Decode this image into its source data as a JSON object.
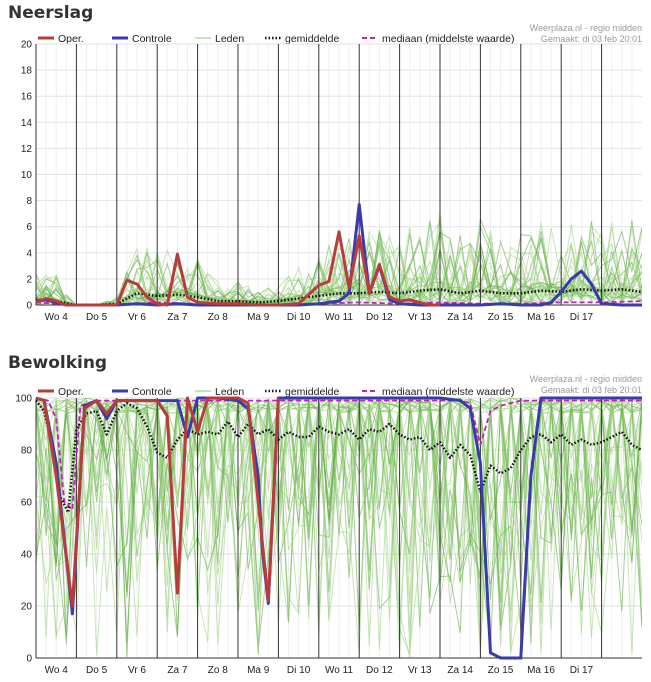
{
  "chart_data": [
    {
      "type": "line",
      "title": "Neerslag",
      "credit_line1": "Weerplaza.nl - regio midden",
      "credit_line2": "Gemaakt: di 03 feb 20:01",
      "ylim": [
        0,
        20
      ],
      "yticks": [
        0,
        2,
        4,
        6,
        8,
        10,
        12,
        14,
        16,
        18,
        20
      ],
      "xlim": [
        0,
        15
      ],
      "day_boundaries": [
        1,
        2,
        3,
        4,
        5,
        6,
        7,
        8,
        9,
        10,
        11,
        12,
        13,
        14
      ],
      "xlabels": [
        {
          "x": 0.5,
          "label": "Wo 4"
        },
        {
          "x": 1.5,
          "label": "Do 5"
        },
        {
          "x": 2.5,
          "label": "Vr 6"
        },
        {
          "x": 3.5,
          "label": "Za 7"
        },
        {
          "x": 4.5,
          "label": "Zo 8"
        },
        {
          "x": 5.5,
          "label": "Ma 9"
        },
        {
          "x": 6.5,
          "label": "Di 10"
        },
        {
          "x": 7.5,
          "label": "Wo 11"
        },
        {
          "x": 8.5,
          "label": "Do 12"
        },
        {
          "x": 9.5,
          "label": "Vr 13"
        },
        {
          "x": 10.5,
          "label": "Za 14"
        },
        {
          "x": 11.5,
          "label": "Zo 15"
        },
        {
          "x": 12.5,
          "label": "Ma 16"
        },
        {
          "x": 13.5,
          "label": "Di 17"
        }
      ],
      "grid": true,
      "legend": [
        {
          "label": "Oper.",
          "color": "#b83c3c",
          "style": "solid-thick"
        },
        {
          "label": "Controle",
          "color": "#3a3aaa",
          "style": "solid-thick"
        },
        {
          "label": "Leden",
          "color": "#8cc86c",
          "style": "thin"
        },
        {
          "label": "gemiddelde",
          "color": "#111111",
          "style": "dotted"
        },
        {
          "label": "mediaan (middelste waarde)",
          "color": "#c020c0",
          "style": "dashed"
        }
      ],
      "series": [
        {
          "name": "Oper.",
          "color": "#b83c3c",
          "x": [
            0,
            0.25,
            0.5,
            0.75,
            1,
            1.5,
            2,
            2.25,
            2.5,
            2.75,
            3,
            3.25,
            3.5,
            3.75,
            4,
            4.5,
            5,
            5.5,
            6,
            6.5,
            7,
            7.25,
            7.5,
            7.75,
            8,
            8.25,
            8.5,
            8.75,
            9,
            9.25,
            9.5,
            9.75,
            10
          ],
          "y": [
            0.2,
            0.5,
            0.3,
            0.0,
            0.0,
            0.0,
            0.0,
            1.9,
            1.6,
            0.6,
            0.1,
            0.0,
            3.9,
            0.6,
            0.2,
            0.1,
            0.1,
            0.0,
            0.0,
            0.1,
            1.5,
            1.8,
            5.6,
            1.3,
            5.3,
            0.9,
            3.1,
            0.6,
            0.3,
            0.4,
            0.2,
            0.0,
            0.0
          ]
        },
        {
          "name": "Controle",
          "color": "#3a3aaa",
          "x": [
            0,
            0.25,
            0.5,
            0.75,
            1,
            1.5,
            2,
            2.5,
            3,
            3.5,
            4,
            4.5,
            5,
            5.5,
            6,
            6.5,
            7,
            7.25,
            7.5,
            7.75,
            8,
            8.25,
            8.5,
            8.75,
            9,
            9.5,
            10,
            10.5,
            11,
            11.5,
            12,
            12.5,
            12.75,
            13,
            13.25,
            13.5,
            13.75,
            14,
            14.5,
            15
          ],
          "y": [
            0.3,
            0.4,
            0.2,
            0.0,
            0.0,
            0.0,
            0.0,
            0.1,
            0.0,
            0.1,
            0.0,
            0.0,
            0.0,
            0.0,
            0.0,
            0.0,
            0.1,
            0.2,
            0.3,
            0.9,
            7.7,
            0.9,
            3.0,
            0.4,
            0.1,
            0.0,
            0.0,
            0.0,
            0.0,
            0.1,
            0.0,
            0.0,
            0.2,
            1.0,
            2.0,
            2.6,
            1.6,
            0.1,
            0.0,
            0.0
          ]
        },
        {
          "name": "gemiddelde",
          "color": "#111111",
          "x": [
            0,
            0.5,
            1,
            1.5,
            2,
            2.5,
            3,
            3.5,
            4,
            4.5,
            5,
            5.5,
            6,
            6.5,
            7,
            7.5,
            8,
            8.5,
            9,
            9.5,
            10,
            10.5,
            11,
            11.5,
            12,
            12.5,
            13,
            13.5,
            14,
            14.5,
            15
          ],
          "y": [
            0.4,
            0.3,
            0.0,
            0.0,
            0.1,
            0.9,
            0.7,
            0.8,
            0.6,
            0.3,
            0.3,
            0.2,
            0.3,
            0.5,
            0.7,
            0.9,
            0.9,
            1.0,
            0.9,
            1.1,
            1.2,
            0.9,
            1.1,
            0.9,
            0.9,
            1.1,
            1.0,
            1.2,
            1.1,
            1.2,
            1.0
          ]
        },
        {
          "name": "mediaan (middelste waarde)",
          "color": "#c020c0",
          "x": [
            0,
            0.5,
            1,
            2,
            3,
            4,
            5,
            6,
            7,
            8,
            9,
            10,
            11,
            12,
            13,
            14,
            15
          ],
          "y": [
            0.2,
            0.1,
            0.0,
            0.0,
            0.2,
            0.1,
            0.0,
            0.0,
            0.1,
            0.2,
            0.1,
            0.2,
            0.1,
            0.1,
            0.2,
            0.2,
            0.3
          ]
        }
      ]
    },
    {
      "type": "line",
      "title": "Bewolking",
      "credit_line1": "Weerplaza.nl - regio midden",
      "credit_line2": "Gemaakt: di 03 feb 20:01",
      "ylim": [
        0,
        100
      ],
      "yticks": [
        0,
        20,
        40,
        60,
        80,
        100
      ],
      "xlim": [
        0,
        15
      ],
      "day_boundaries": [
        1,
        2,
        3,
        4,
        5,
        6,
        7,
        8,
        9,
        10,
        11,
        12,
        13,
        14
      ],
      "xlabels": [
        {
          "x": 0.5,
          "label": "Wo 4"
        },
        {
          "x": 1.5,
          "label": "Do 5"
        },
        {
          "x": 2.5,
          "label": "Vr 6"
        },
        {
          "x": 3.5,
          "label": "Za 7"
        },
        {
          "x": 4.5,
          "label": "Zo 8"
        },
        {
          "x": 5.5,
          "label": "Ma 9"
        },
        {
          "x": 6.5,
          "label": "Di 10"
        },
        {
          "x": 7.5,
          "label": "Wo 11"
        },
        {
          "x": 8.5,
          "label": "Do 12"
        },
        {
          "x": 9.5,
          "label": "Vr 13"
        },
        {
          "x": 10.5,
          "label": "Za 14"
        },
        {
          "x": 11.5,
          "label": "Zo 15"
        },
        {
          "x": 12.5,
          "label": "Ma 16"
        },
        {
          "x": 13.5,
          "label": "Di 17"
        }
      ],
      "grid": true,
      "legend": [
        {
          "label": "Oper.",
          "color": "#b83c3c",
          "style": "solid-thick"
        },
        {
          "label": "Controle",
          "color": "#3a3aaa",
          "style": "solid-thick"
        },
        {
          "label": "Leden",
          "color": "#8cc86c",
          "style": "thin"
        },
        {
          "label": "gemiddelde",
          "color": "#111111",
          "style": "dotted"
        },
        {
          "label": "mediaan (middelste waarde)",
          "color": "#c020c0",
          "style": "dashed"
        }
      ],
      "series": [
        {
          "name": "Oper.",
          "color": "#b83c3c",
          "x": [
            0,
            0.2,
            0.5,
            0.9,
            1.2,
            1.5,
            1.75,
            2,
            2.5,
            3,
            3.25,
            3.5,
            3.75,
            4,
            4.25,
            4.5,
            5,
            5.25,
            5.5,
            5.75,
            6
          ],
          "y": [
            100,
            99,
            70,
            20,
            96,
            99,
            94,
            99,
            99,
            99,
            93,
            25,
            100,
            87,
            100,
            100,
            100,
            98,
            60,
            22,
            100
          ]
        },
        {
          "name": "Controle",
          "color": "#3a3aaa",
          "x": [
            0,
            0.2,
            0.5,
            0.9,
            1.2,
            1.5,
            1.75,
            2,
            2.5,
            3,
            3.5,
            3.75,
            4,
            4.25,
            4.5,
            5,
            5.25,
            5.5,
            5.6,
            5.75,
            6,
            7,
            8,
            9,
            10,
            10.5,
            10.75,
            11,
            11.25,
            11.5,
            11.75,
            12,
            12.25,
            12.5,
            13,
            14,
            15
          ],
          "y": [
            100,
            99,
            75,
            17,
            97,
            99,
            92,
            99,
            99,
            99,
            99,
            85,
            100,
            100,
            100,
            99,
            96,
            70,
            42,
            21,
            100,
            100,
            100,
            100,
            100,
            99,
            96,
            75,
            2,
            0,
            0,
            0,
            70,
            100,
            100,
            100,
            100
          ]
        },
        {
          "name": "gemiddelde",
          "color": "#111111",
          "x": [
            0,
            0.2,
            0.4,
            0.6,
            0.8,
            1,
            1.25,
            1.5,
            1.75,
            2,
            2.25,
            2.5,
            2.75,
            3,
            3.25,
            3.5,
            3.75,
            4,
            4.25,
            4.5,
            4.75,
            5,
            5.25,
            5.5,
            5.75,
            6,
            6.25,
            6.5,
            6.75,
            7,
            7.25,
            7.5,
            7.75,
            8,
            8.25,
            8.5,
            8.75,
            9,
            9.25,
            9.5,
            9.75,
            10,
            10.25,
            10.5,
            10.75,
            11,
            11.25,
            11.5,
            11.75,
            12,
            12.25,
            12.5,
            12.75,
            13,
            13.25,
            13.5,
            13.75,
            14,
            14.25,
            14.5,
            14.75,
            15
          ],
          "y": [
            99,
            95,
            82,
            62,
            56,
            88,
            94,
            95,
            86,
            95,
            98,
            96,
            89,
            79,
            77,
            84,
            88,
            86,
            87,
            86,
            91,
            85,
            90,
            86,
            88,
            84,
            87,
            85,
            85,
            89,
            87,
            86,
            88,
            84,
            88,
            87,
            90,
            86,
            84,
            85,
            80,
            83,
            77,
            82,
            78,
            64,
            74,
            71,
            73,
            80,
            85,
            86,
            83,
            86,
            82,
            84,
            82,
            83,
            85,
            87,
            82,
            80
          ]
        },
        {
          "name": "mediaan (middelste waarde)",
          "color": "#c020c0",
          "x": [
            0,
            0.3,
            0.5,
            0.7,
            0.9,
            1.1,
            1.5,
            2,
            3,
            4,
            5,
            6,
            7,
            8,
            9,
            10,
            10.5,
            10.75,
            11,
            11.25,
            11.5,
            12,
            13,
            14,
            15
          ],
          "y": [
            100,
            99,
            92,
            60,
            57,
            97,
            99,
            99,
            99,
            99,
            99,
            99,
            99,
            99,
            99,
            99,
            99,
            98,
            82,
            95,
            97,
            99,
            99,
            99,
            99
          ]
        }
      ]
    }
  ]
}
